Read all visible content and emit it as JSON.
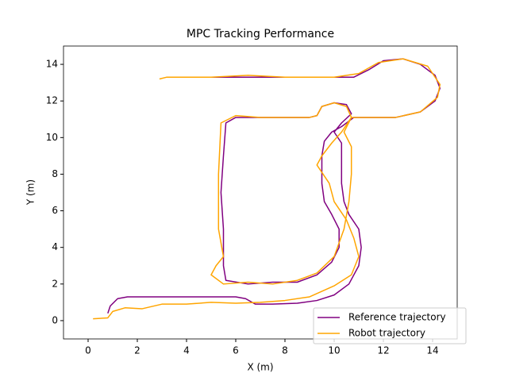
{
  "chart_data": {
    "type": "line",
    "title": "MPC Tracking Performance",
    "xlabel": "X (m)",
    "ylabel": "Y (m)",
    "xlim": [
      -1,
      15
    ],
    "ylim": [
      -1,
      15
    ],
    "xticks": [
      0,
      2,
      4,
      6,
      8,
      10,
      12,
      14
    ],
    "yticks": [
      0,
      2,
      4,
      6,
      8,
      10,
      12,
      14
    ],
    "legend": "lower right",
    "series": [
      {
        "name": "Reference trajectory",
        "color": "#800080",
        "x": [
          0.8,
          0.9,
          1.2,
          1.6,
          3,
          4.5,
          5.5,
          6.0,
          6.4,
          6.8,
          7.5,
          8.5,
          9.3,
          10.0,
          10.6,
          11.0,
          11.1,
          11.0,
          10.6,
          10.4,
          10.3,
          10.3,
          10.3,
          10.0,
          10.3,
          10.7,
          10.5,
          10.0,
          9.5,
          9.3,
          9.0,
          8,
          7,
          6.0,
          5.6,
          5.5,
          5.4,
          5.5,
          5.5,
          5.6,
          6.5,
          7.5,
          8.5,
          9.3,
          9.9,
          10.2,
          10.2,
          9.9,
          9.6,
          9.5,
          9.5,
          9.6,
          9.9,
          10.3,
          10.8,
          11.5,
          12.5,
          13.5,
          14.1,
          14.3,
          14.1,
          13.5,
          12.8,
          12.0,
          11.4,
          10.8,
          9,
          7,
          5,
          3.2
        ],
        "values": [
          0.4,
          0.8,
          1.2,
          1.3,
          1.3,
          1.3,
          1.3,
          1.3,
          1.2,
          0.9,
          0.9,
          0.95,
          1.1,
          1.4,
          2.0,
          3.0,
          4.0,
          5.0,
          5.8,
          6.5,
          7.5,
          8.8,
          9.7,
          10.3,
          10.8,
          11.3,
          11.8,
          11.9,
          11.7,
          11.2,
          11.1,
          11.1,
          11.1,
          11.1,
          10.8,
          9,
          7,
          5,
          3,
          2.2,
          2.0,
          2.1,
          2.1,
          2.5,
          3.2,
          4.0,
          5.0,
          5.8,
          6.5,
          7.5,
          9.0,
          9.8,
          10.3,
          10.6,
          11.1,
          11.1,
          11.1,
          11.4,
          12.0,
          12.7,
          13.4,
          14.0,
          14.3,
          14.2,
          13.7,
          13.3,
          13.3,
          13.3,
          13.3,
          13.3
        ]
      },
      {
        "name": "Robot trajectory",
        "color": "#ffa500",
        "x": [
          0.2,
          0.8,
          1.0,
          1.5,
          2.2,
          3,
          4,
          5,
          6,
          7,
          8,
          9,
          10,
          10.7,
          11.0,
          10.8,
          10.5,
          10.0,
          9.8,
          9.3,
          9.5,
          9.9,
          10.3,
          10.7,
          10.5,
          10.0,
          9.5,
          9.3,
          9.0,
          8,
          7,
          6.0,
          5.4,
          5.3,
          5.3,
          5.5,
          5.2,
          5.0,
          5.5,
          6.5,
          7.5,
          8.5,
          9.3,
          10.0,
          10.4,
          10.6,
          10.7,
          10.7,
          10.4,
          10.7,
          11.5,
          12.5,
          13.5,
          14.2,
          14.3,
          13.8,
          12.8,
          11.8,
          11.0,
          10,
          8,
          6.5,
          5,
          3.2,
          2.9
        ],
        "values": [
          0.1,
          0.15,
          0.5,
          0.7,
          0.65,
          0.9,
          0.9,
          1.0,
          0.95,
          1.0,
          1.1,
          1.3,
          1.9,
          2.5,
          3.5,
          4.5,
          5.5,
          6.5,
          7.5,
          8.5,
          9.0,
          9.7,
          10.3,
          11.1,
          11.7,
          11.9,
          11.7,
          11.2,
          11.1,
          11.1,
          11.1,
          11.2,
          10.8,
          8,
          5,
          3.5,
          3,
          2.5,
          2.0,
          2.1,
          2.0,
          2.2,
          2.6,
          3.5,
          5,
          6.5,
          8,
          9.5,
          10.3,
          11.1,
          11.1,
          11.1,
          11.4,
          12.2,
          12.9,
          13.9,
          14.3,
          14.1,
          13.5,
          13.3,
          13.3,
          13.4,
          13.3,
          13.3,
          13.2
        ]
      }
    ]
  }
}
